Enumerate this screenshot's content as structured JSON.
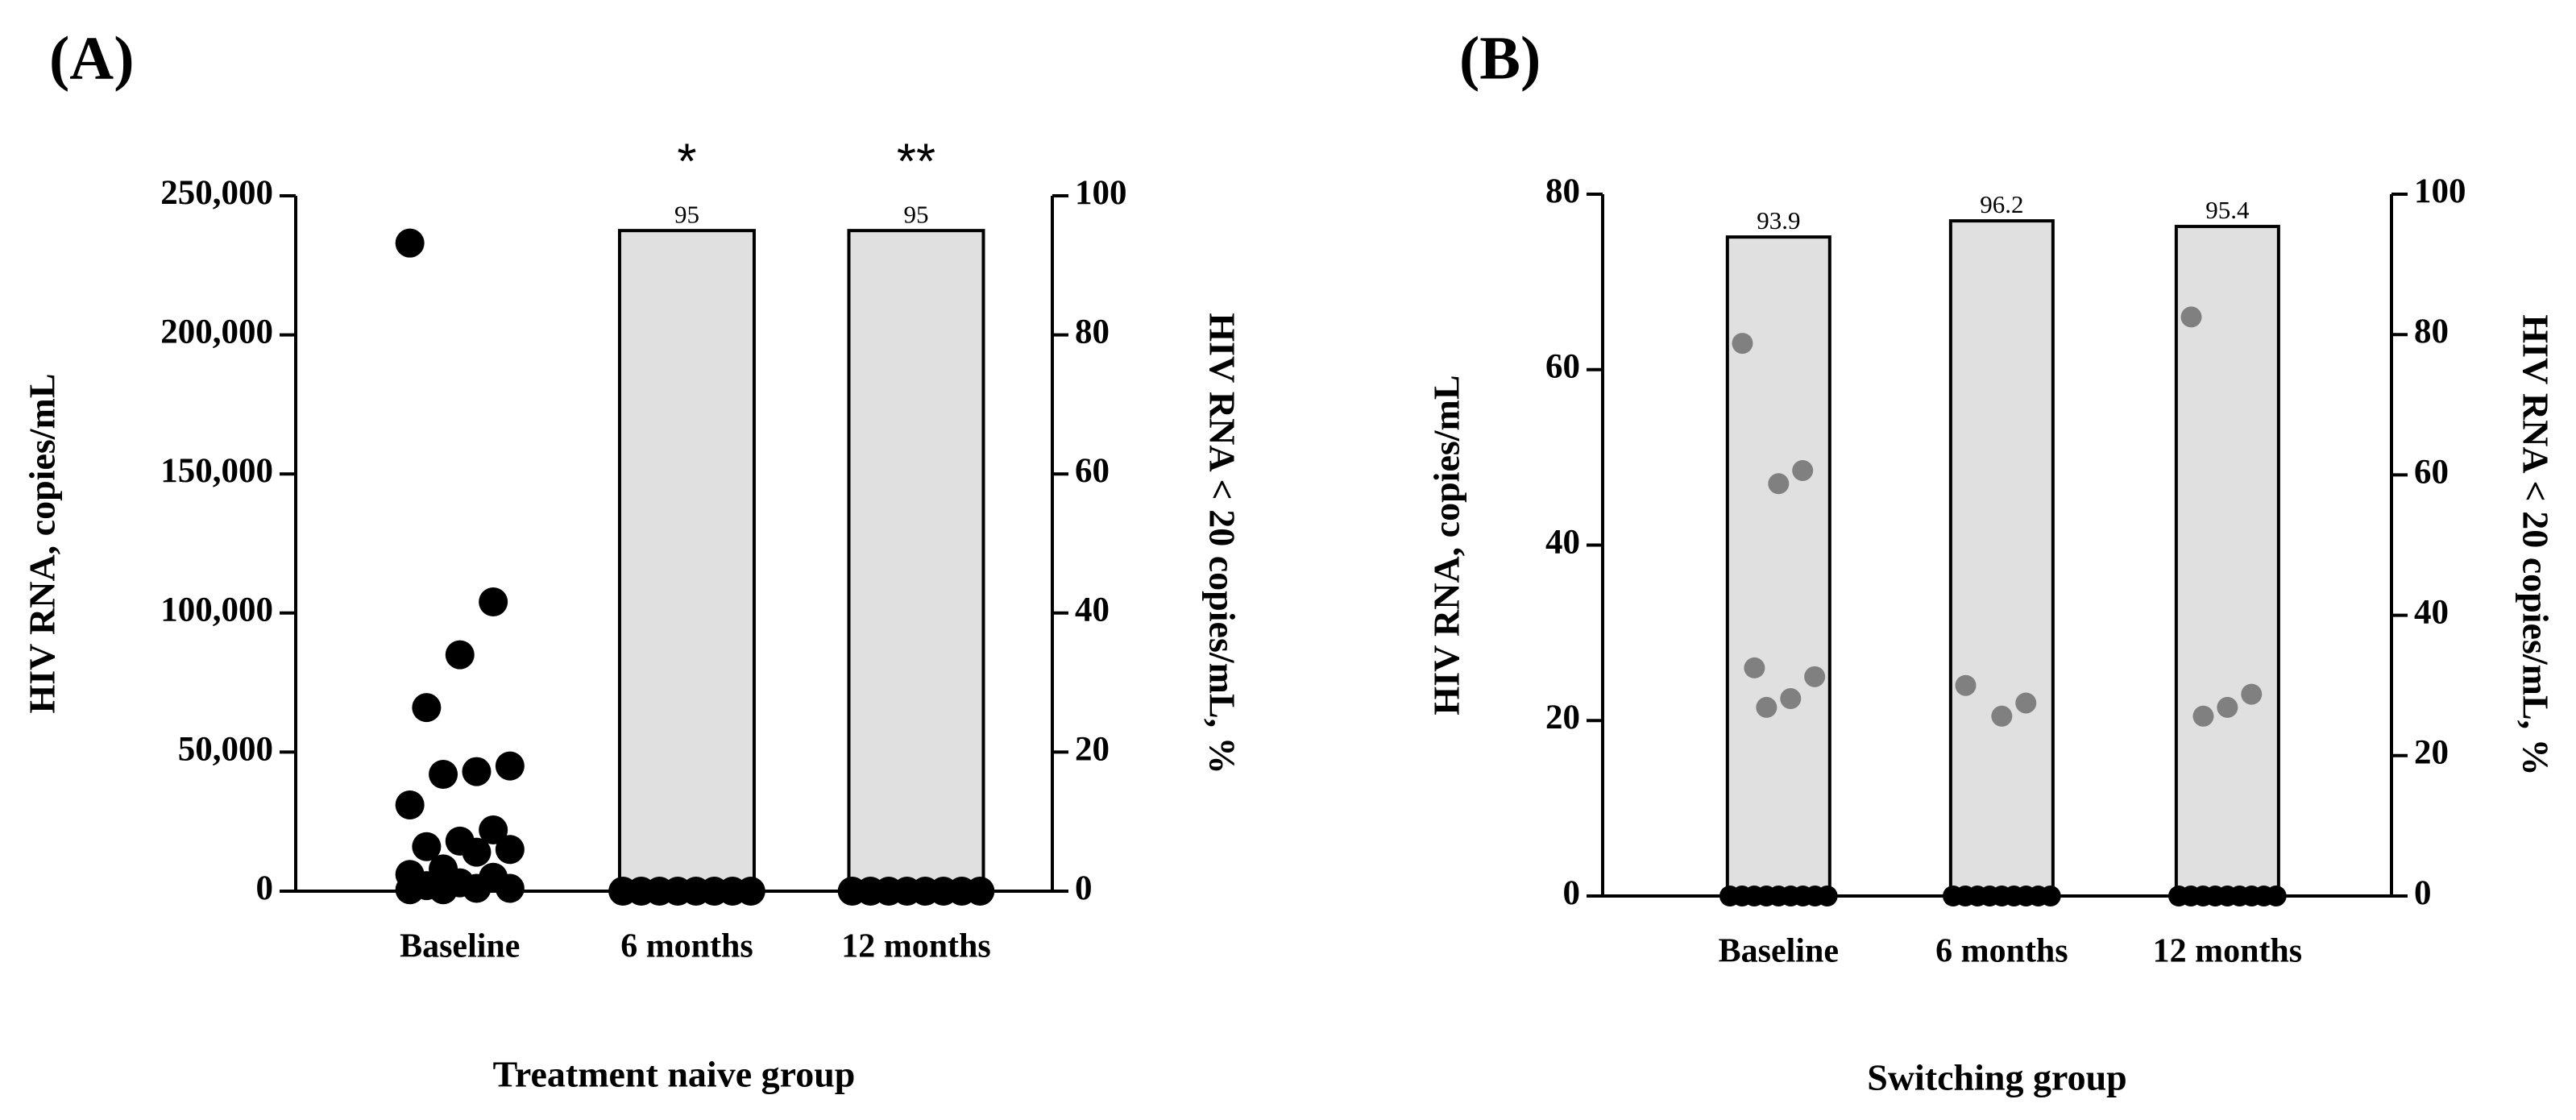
{
  "chart_data": [
    {
      "type": "bar",
      "panel_label": "(A)",
      "x_label": "Treatment naive group",
      "y_label": "HIV RNA, copies/mL",
      "y2_label": "HIV RNA < 20 copies/mL, %",
      "categories": [
        "Baseline",
        "6 months",
        "12 months"
      ],
      "ylim": [
        0,
        250000
      ],
      "yticks": [
        0,
        {
          "value": 50000,
          "label": "50,000"
        },
        {
          "value": 100000,
          "label": "100,000"
        },
        {
          "value": 150000,
          "label": "150,000"
        },
        {
          "value": 200000,
          "label": "200,000"
        },
        {
          "value": 250000,
          "label": "250,000"
        }
      ],
      "y2lim": [
        0,
        100
      ],
      "y2ticks": [
        0,
        20,
        40,
        60,
        80,
        100
      ],
      "series": [
        {
          "values": [
            null,
            95,
            95
          ],
          "color": "#e0e0e0",
          "axis": "y2"
        }
      ],
      "points": [
        {
          "color": "#000000",
          "groups": [
            [
              233000,
              104000,
              85000,
              66000,
              45000,
              43000,
              42000,
              31000,
              22000,
              18000,
              16000,
              15000,
              14000,
              8000,
              6000,
              5000,
              3000,
              2000,
              1000,
              1000,
              500,
              500
            ],
            [
              0,
              0,
              0,
              0,
              0,
              0,
              0,
              0
            ],
            [
              0,
              0,
              0,
              0,
              0,
              0,
              0,
              0
            ]
          ]
        }
      ],
      "significance": [
        null,
        "*",
        "**"
      ]
    },
    {
      "type": "bar",
      "panel_label": "(B)",
      "x_label": "Switching group",
      "y_label": "HIV RNA, copies/mL",
      "y2_label": "HIV RNA < 20 copies/mL, %",
      "categories": [
        "Baseline",
        "6 months",
        "12 months"
      ],
      "ylim": [
        0,
        80
      ],
      "yticks": [
        0,
        20,
        40,
        60,
        80
      ],
      "y2lim": [
        0,
        100
      ],
      "y2ticks": [
        0,
        20,
        40,
        60,
        80,
        100
      ],
      "series": [
        {
          "values": [
            93.9,
            96.2,
            95.4
          ],
          "color": "#e0e0e0",
          "axis": "y2"
        }
      ],
      "points": [
        {
          "color": "#808080",
          "groups": [
            [
              63,
              48.5,
              47,
              26,
              25,
              22.5,
              21.5
            ],
            [
              24,
              22,
              20.5
            ],
            [
              66,
              23,
              21.5,
              20.5
            ]
          ]
        },
        {
          "color": "#000000",
          "groups": [
            [
              0,
              0,
              0,
              0,
              0,
              0,
              0,
              0,
              0
            ],
            [
              0,
              0,
              0,
              0,
              0,
              0,
              0,
              0,
              0
            ],
            [
              0,
              0,
              0,
              0,
              0,
              0,
              0,
              0,
              0
            ]
          ]
        }
      ]
    }
  ]
}
